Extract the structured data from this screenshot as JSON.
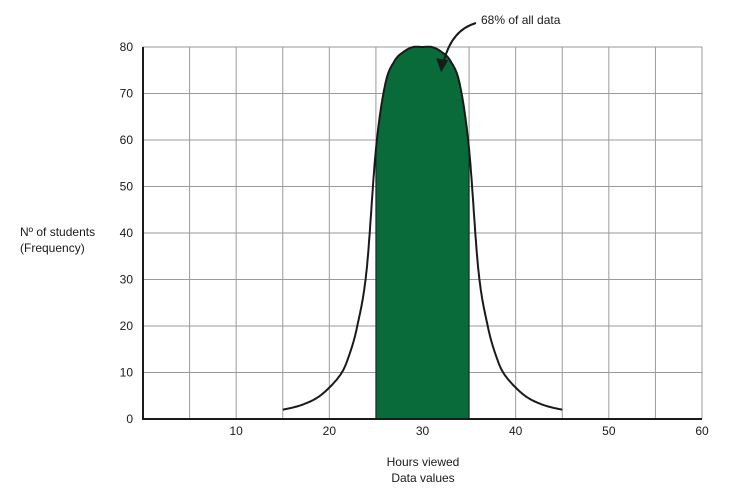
{
  "chart_data": {
    "type": "area",
    "title": "",
    "xlabel": [
      "Hours viewed",
      "Data values"
    ],
    "ylabel": [
      "Nº of students",
      "(Frequency)"
    ],
    "xlim": [
      0,
      60
    ],
    "ylim": [
      0,
      80
    ],
    "x_ticks": [
      10,
      20,
      30,
      40,
      50,
      60
    ],
    "y_ticks": [
      0,
      10,
      20,
      30,
      40,
      50,
      60,
      70,
      80
    ],
    "grid": true,
    "curve": {
      "x": [
        15,
        17,
        19,
        21,
        22,
        23,
        24,
        25,
        26,
        27,
        28,
        29,
        30,
        31,
        32,
        33,
        34,
        35,
        36,
        37,
        38,
        39,
        41,
        43,
        45
      ],
      "y": [
        2,
        3,
        5,
        9,
        13,
        20,
        32,
        58,
        72,
        77,
        79,
        80,
        80,
        80,
        79,
        77,
        72,
        58,
        32,
        20,
        13,
        9,
        5,
        3,
        2
      ]
    },
    "shaded_range": [
      25,
      35
    ],
    "annotation": {
      "text": "68% of all data",
      "x": 32,
      "y": 75
    },
    "colors": {
      "fill": "#096b3a",
      "line": "#1a1a1a",
      "grid": "#9a9a9a"
    }
  }
}
